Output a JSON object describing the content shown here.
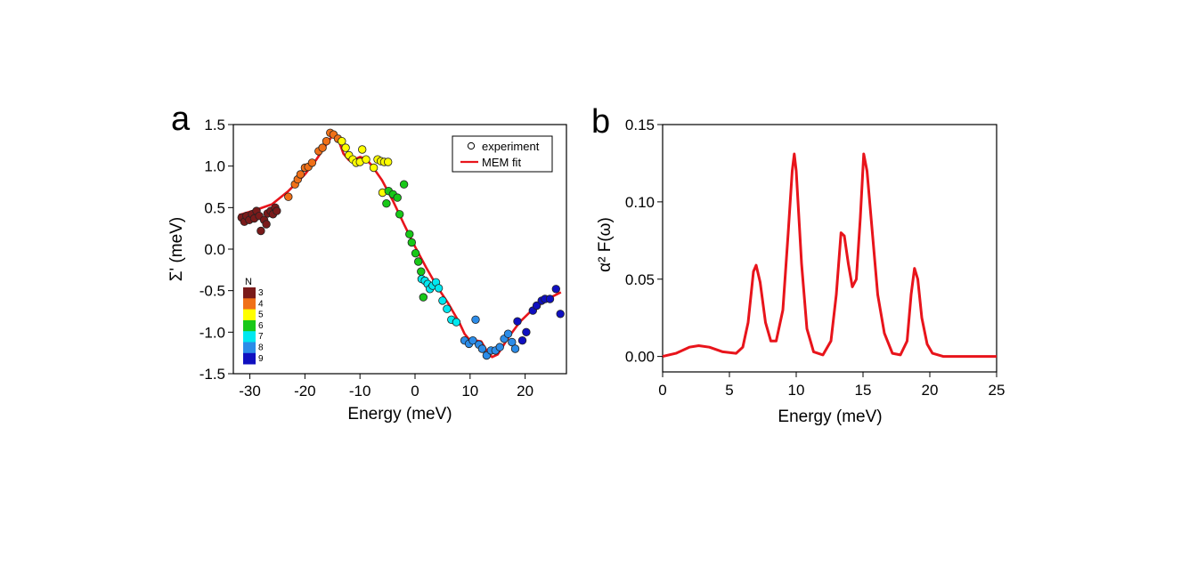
{
  "panel_a": {
    "letter": "a"
  },
  "panel_b": {
    "letter": "b"
  },
  "chart_data": [
    {
      "type": "scatter",
      "panel": "a",
      "xlabel": "Energy (meV)",
      "ylabel": "Σ' (meV)",
      "xlim": [
        -33,
        27.5
      ],
      "ylim": [
        -1.5,
        1.5
      ],
      "xticks": [
        -30,
        -20,
        -10,
        0,
        10,
        20
      ],
      "xtick_labels": [
        "-30",
        "-20",
        "-10",
        "0",
        "10",
        "20"
      ],
      "yticks": [
        -1.5,
        -1.0,
        -0.5,
        0.0,
        0.5,
        1.0,
        1.5
      ],
      "ytick_labels": [
        "-1.5",
        "-1.0",
        "-0.5",
        "0.0",
        "0.5",
        "1.0",
        "1.5"
      ],
      "legend": {
        "placement": "top-right",
        "entries": [
          {
            "label": "experiment",
            "marker": "open-circle"
          },
          {
            "label": "MEM fit",
            "marker": "line",
            "color": "#e8141b"
          }
        ]
      },
      "colorbar": {
        "title": "N",
        "labels": [
          "3",
          "4",
          "5",
          "6",
          "7",
          "8",
          "9"
        ],
        "colors": [
          "#7a1a1a",
          "#f07018",
          "#ffff00",
          "#18c818",
          "#00e8f0",
          "#2c8ce8",
          "#1010c0"
        ]
      },
      "series": [
        {
          "name": "experiment",
          "kind": "points",
          "points": [
            {
              "x": -31.5,
              "y": 0.38,
              "n": 3
            },
            {
              "x": -31.0,
              "y": 0.33,
              "n": 3
            },
            {
              "x": -30.6,
              "y": 0.4,
              "n": 3
            },
            {
              "x": -30.1,
              "y": 0.35,
              "n": 3
            },
            {
              "x": -29.6,
              "y": 0.42,
              "n": 3
            },
            {
              "x": -29.2,
              "y": 0.37,
              "n": 3
            },
            {
              "x": -28.8,
              "y": 0.46,
              "n": 3
            },
            {
              "x": -28.3,
              "y": 0.4,
              "n": 3
            },
            {
              "x": -28.0,
              "y": 0.22,
              "n": 3
            },
            {
              "x": -27.4,
              "y": 0.35,
              "n": 3
            },
            {
              "x": -27.0,
              "y": 0.3,
              "n": 3
            },
            {
              "x": -26.8,
              "y": 0.43,
              "n": 3
            },
            {
              "x": -26.2,
              "y": 0.46,
              "n": 3
            },
            {
              "x": -25.8,
              "y": 0.42,
              "n": 3
            },
            {
              "x": -25.4,
              "y": 0.5,
              "n": 3
            },
            {
              "x": -25.1,
              "y": 0.46,
              "n": 3
            },
            {
              "x": -23.0,
              "y": 0.63,
              "n": 4
            },
            {
              "x": -21.8,
              "y": 0.78,
              "n": 4
            },
            {
              "x": -21.3,
              "y": 0.84,
              "n": 4
            },
            {
              "x": -20.8,
              "y": 0.9,
              "n": 4
            },
            {
              "x": -20.0,
              "y": 0.98,
              "n": 4
            },
            {
              "x": -19.4,
              "y": 0.99,
              "n": 4
            },
            {
              "x": -18.7,
              "y": 1.04,
              "n": 4
            },
            {
              "x": -17.5,
              "y": 1.18,
              "n": 4
            },
            {
              "x": -16.8,
              "y": 1.22,
              "n": 4
            },
            {
              "x": -16.1,
              "y": 1.3,
              "n": 4
            },
            {
              "x": -15.4,
              "y": 1.4,
              "n": 4
            },
            {
              "x": -14.8,
              "y": 1.38,
              "n": 4
            },
            {
              "x": -14.0,
              "y": 1.33,
              "n": 4
            },
            {
              "x": -13.3,
              "y": 1.3,
              "n": 5
            },
            {
              "x": -12.6,
              "y": 1.22,
              "n": 5
            },
            {
              "x": -12.0,
              "y": 1.13,
              "n": 5
            },
            {
              "x": -11.3,
              "y": 1.08,
              "n": 5
            },
            {
              "x": -10.7,
              "y": 1.04,
              "n": 5
            },
            {
              "x": -10.0,
              "y": 1.05,
              "n": 5
            },
            {
              "x": -9.6,
              "y": 1.2,
              "n": 5
            },
            {
              "x": -8.9,
              "y": 1.08,
              "n": 5
            },
            {
              "x": -7.5,
              "y": 0.98,
              "n": 5
            },
            {
              "x": -6.8,
              "y": 1.08,
              "n": 5
            },
            {
              "x": -6.2,
              "y": 1.06,
              "n": 5
            },
            {
              "x": -5.6,
              "y": 1.05,
              "n": 5
            },
            {
              "x": -4.9,
              "y": 1.05,
              "n": 5
            },
            {
              "x": -5.9,
              "y": 0.68,
              "n": 5
            },
            {
              "x": -4.8,
              "y": 0.7,
              "n": 6
            },
            {
              "x": -5.2,
              "y": 0.55,
              "n": 6
            },
            {
              "x": -4.0,
              "y": 0.66,
              "n": 6
            },
            {
              "x": -3.2,
              "y": 0.62,
              "n": 6
            },
            {
              "x": -2.8,
              "y": 0.42,
              "n": 6
            },
            {
              "x": -2.0,
              "y": 0.78,
              "n": 6
            },
            {
              "x": -1.0,
              "y": 0.18,
              "n": 6
            },
            {
              "x": -0.6,
              "y": 0.08,
              "n": 6
            },
            {
              "x": 0.1,
              "y": -0.05,
              "n": 6
            },
            {
              "x": 0.6,
              "y": -0.15,
              "n": 6
            },
            {
              "x": 1.1,
              "y": -0.27,
              "n": 6
            },
            {
              "x": 1.2,
              "y": -0.36,
              "n": 7
            },
            {
              "x": 1.8,
              "y": -0.38,
              "n": 7
            },
            {
              "x": 2.3,
              "y": -0.42,
              "n": 7
            },
            {
              "x": 2.7,
              "y": -0.48,
              "n": 7
            },
            {
              "x": 3.2,
              "y": -0.44,
              "n": 7
            },
            {
              "x": 3.8,
              "y": -0.4,
              "n": 7
            },
            {
              "x": 4.3,
              "y": -0.47,
              "n": 7
            },
            {
              "x": 1.5,
              "y": -0.58,
              "n": 6
            },
            {
              "x": 5.0,
              "y": -0.62,
              "n": 7
            },
            {
              "x": 5.8,
              "y": -0.72,
              "n": 7
            },
            {
              "x": 6.6,
              "y": -0.85,
              "n": 7
            },
            {
              "x": 7.5,
              "y": -0.88,
              "n": 7
            },
            {
              "x": 9.0,
              "y": -1.1,
              "n": 8
            },
            {
              "x": 9.8,
              "y": -1.14,
              "n": 8
            },
            {
              "x": 10.5,
              "y": -1.1,
              "n": 8
            },
            {
              "x": 11.0,
              "y": -0.85,
              "n": 8
            },
            {
              "x": 11.6,
              "y": -1.15,
              "n": 8
            },
            {
              "x": 12.2,
              "y": -1.2,
              "n": 8
            },
            {
              "x": 13.0,
              "y": -1.28,
              "n": 8
            },
            {
              "x": 13.8,
              "y": -1.22,
              "n": 8
            },
            {
              "x": 14.6,
              "y": -1.22,
              "n": 8
            },
            {
              "x": 15.4,
              "y": -1.18,
              "n": 8
            },
            {
              "x": 16.2,
              "y": -1.08,
              "n": 8
            },
            {
              "x": 16.9,
              "y": -1.02,
              "n": 8
            },
            {
              "x": 17.6,
              "y": -1.12,
              "n": 8
            },
            {
              "x": 18.2,
              "y": -1.2,
              "n": 8
            },
            {
              "x": 18.6,
              "y": -0.87,
              "n": 9
            },
            {
              "x": 19.5,
              "y": -1.1,
              "n": 9
            },
            {
              "x": 20.2,
              "y": -1.0,
              "n": 9
            },
            {
              "x": 21.4,
              "y": -0.74,
              "n": 9
            },
            {
              "x": 22.1,
              "y": -0.68,
              "n": 9
            },
            {
              "x": 23.0,
              "y": -0.62,
              "n": 9
            },
            {
              "x": 23.6,
              "y": -0.6,
              "n": 9
            },
            {
              "x": 24.5,
              "y": -0.6,
              "n": 9
            },
            {
              "x": 25.6,
              "y": -0.48,
              "n": 9
            },
            {
              "x": 26.4,
              "y": -0.78,
              "n": 9
            }
          ]
        },
        {
          "name": "MEM fit",
          "kind": "line",
          "color": "#e8141b",
          "x": [
            -32,
            -29,
            -26,
            -23,
            -20,
            -18,
            -16.5,
            -15,
            -14,
            -13,
            -12,
            -11,
            -10,
            -9,
            -8,
            -6,
            -4,
            -2,
            0,
            2,
            4,
            6,
            8,
            9,
            10,
            11,
            12,
            13,
            14,
            15,
            17,
            19,
            21,
            23,
            25,
            26.5
          ],
          "y": [
            0.41,
            0.47,
            0.54,
            0.7,
            0.9,
            1.07,
            1.22,
            1.37,
            1.33,
            1.15,
            1.07,
            1.08,
            1.11,
            1.09,
            1.02,
            0.83,
            0.58,
            0.3,
            0.03,
            -0.22,
            -0.45,
            -0.65,
            -0.88,
            -1.02,
            -1.1,
            -1.1,
            -1.11,
            -1.22,
            -1.3,
            -1.27,
            -1.06,
            -0.88,
            -0.75,
            -0.65,
            -0.57,
            -0.52
          ]
        }
      ]
    },
    {
      "type": "line",
      "panel": "b",
      "xlabel": "Energy (meV)",
      "ylabel": "α² F(ω)",
      "xlim": [
        0,
        25
      ],
      "ylim": [
        -0.01,
        0.15
      ],
      "xticks": [
        0,
        5,
        10,
        15,
        20,
        25
      ],
      "xtick_labels": [
        "0",
        "5",
        "10",
        "15",
        "20",
        "25"
      ],
      "yticks": [
        0.0,
        0.05,
        0.1,
        0.15
      ],
      "ytick_labels": [
        "0.00",
        "0.05",
        "0.10",
        "0.15"
      ],
      "series": [
        {
          "color": "#e8141b",
          "x": [
            0,
            1,
            2,
            2.7,
            3.5,
            4.5,
            5.5,
            6.0,
            6.4,
            6.8,
            7.0,
            7.3,
            7.7,
            8.1,
            8.5,
            9.0,
            9.4,
            9.7,
            9.85,
            10.0,
            10.4,
            10.8,
            11.3,
            12.0,
            12.6,
            13.0,
            13.35,
            13.6,
            13.9,
            14.2,
            14.5,
            14.8,
            15.05,
            15.3,
            15.7,
            16.1,
            16.6,
            17.2,
            17.8,
            18.3,
            18.6,
            18.85,
            19.1,
            19.4,
            19.8,
            20.2,
            21,
            23,
            25
          ],
          "y": [
            0.0,
            0.002,
            0.006,
            0.007,
            0.006,
            0.003,
            0.002,
            0.006,
            0.022,
            0.055,
            0.059,
            0.048,
            0.022,
            0.01,
            0.01,
            0.03,
            0.08,
            0.12,
            0.131,
            0.12,
            0.06,
            0.018,
            0.003,
            0.001,
            0.01,
            0.04,
            0.08,
            0.078,
            0.06,
            0.045,
            0.05,
            0.09,
            0.131,
            0.12,
            0.08,
            0.04,
            0.015,
            0.002,
            0.001,
            0.01,
            0.04,
            0.057,
            0.05,
            0.025,
            0.008,
            0.002,
            0.0,
            0.0,
            0.0
          ]
        }
      ]
    }
  ]
}
